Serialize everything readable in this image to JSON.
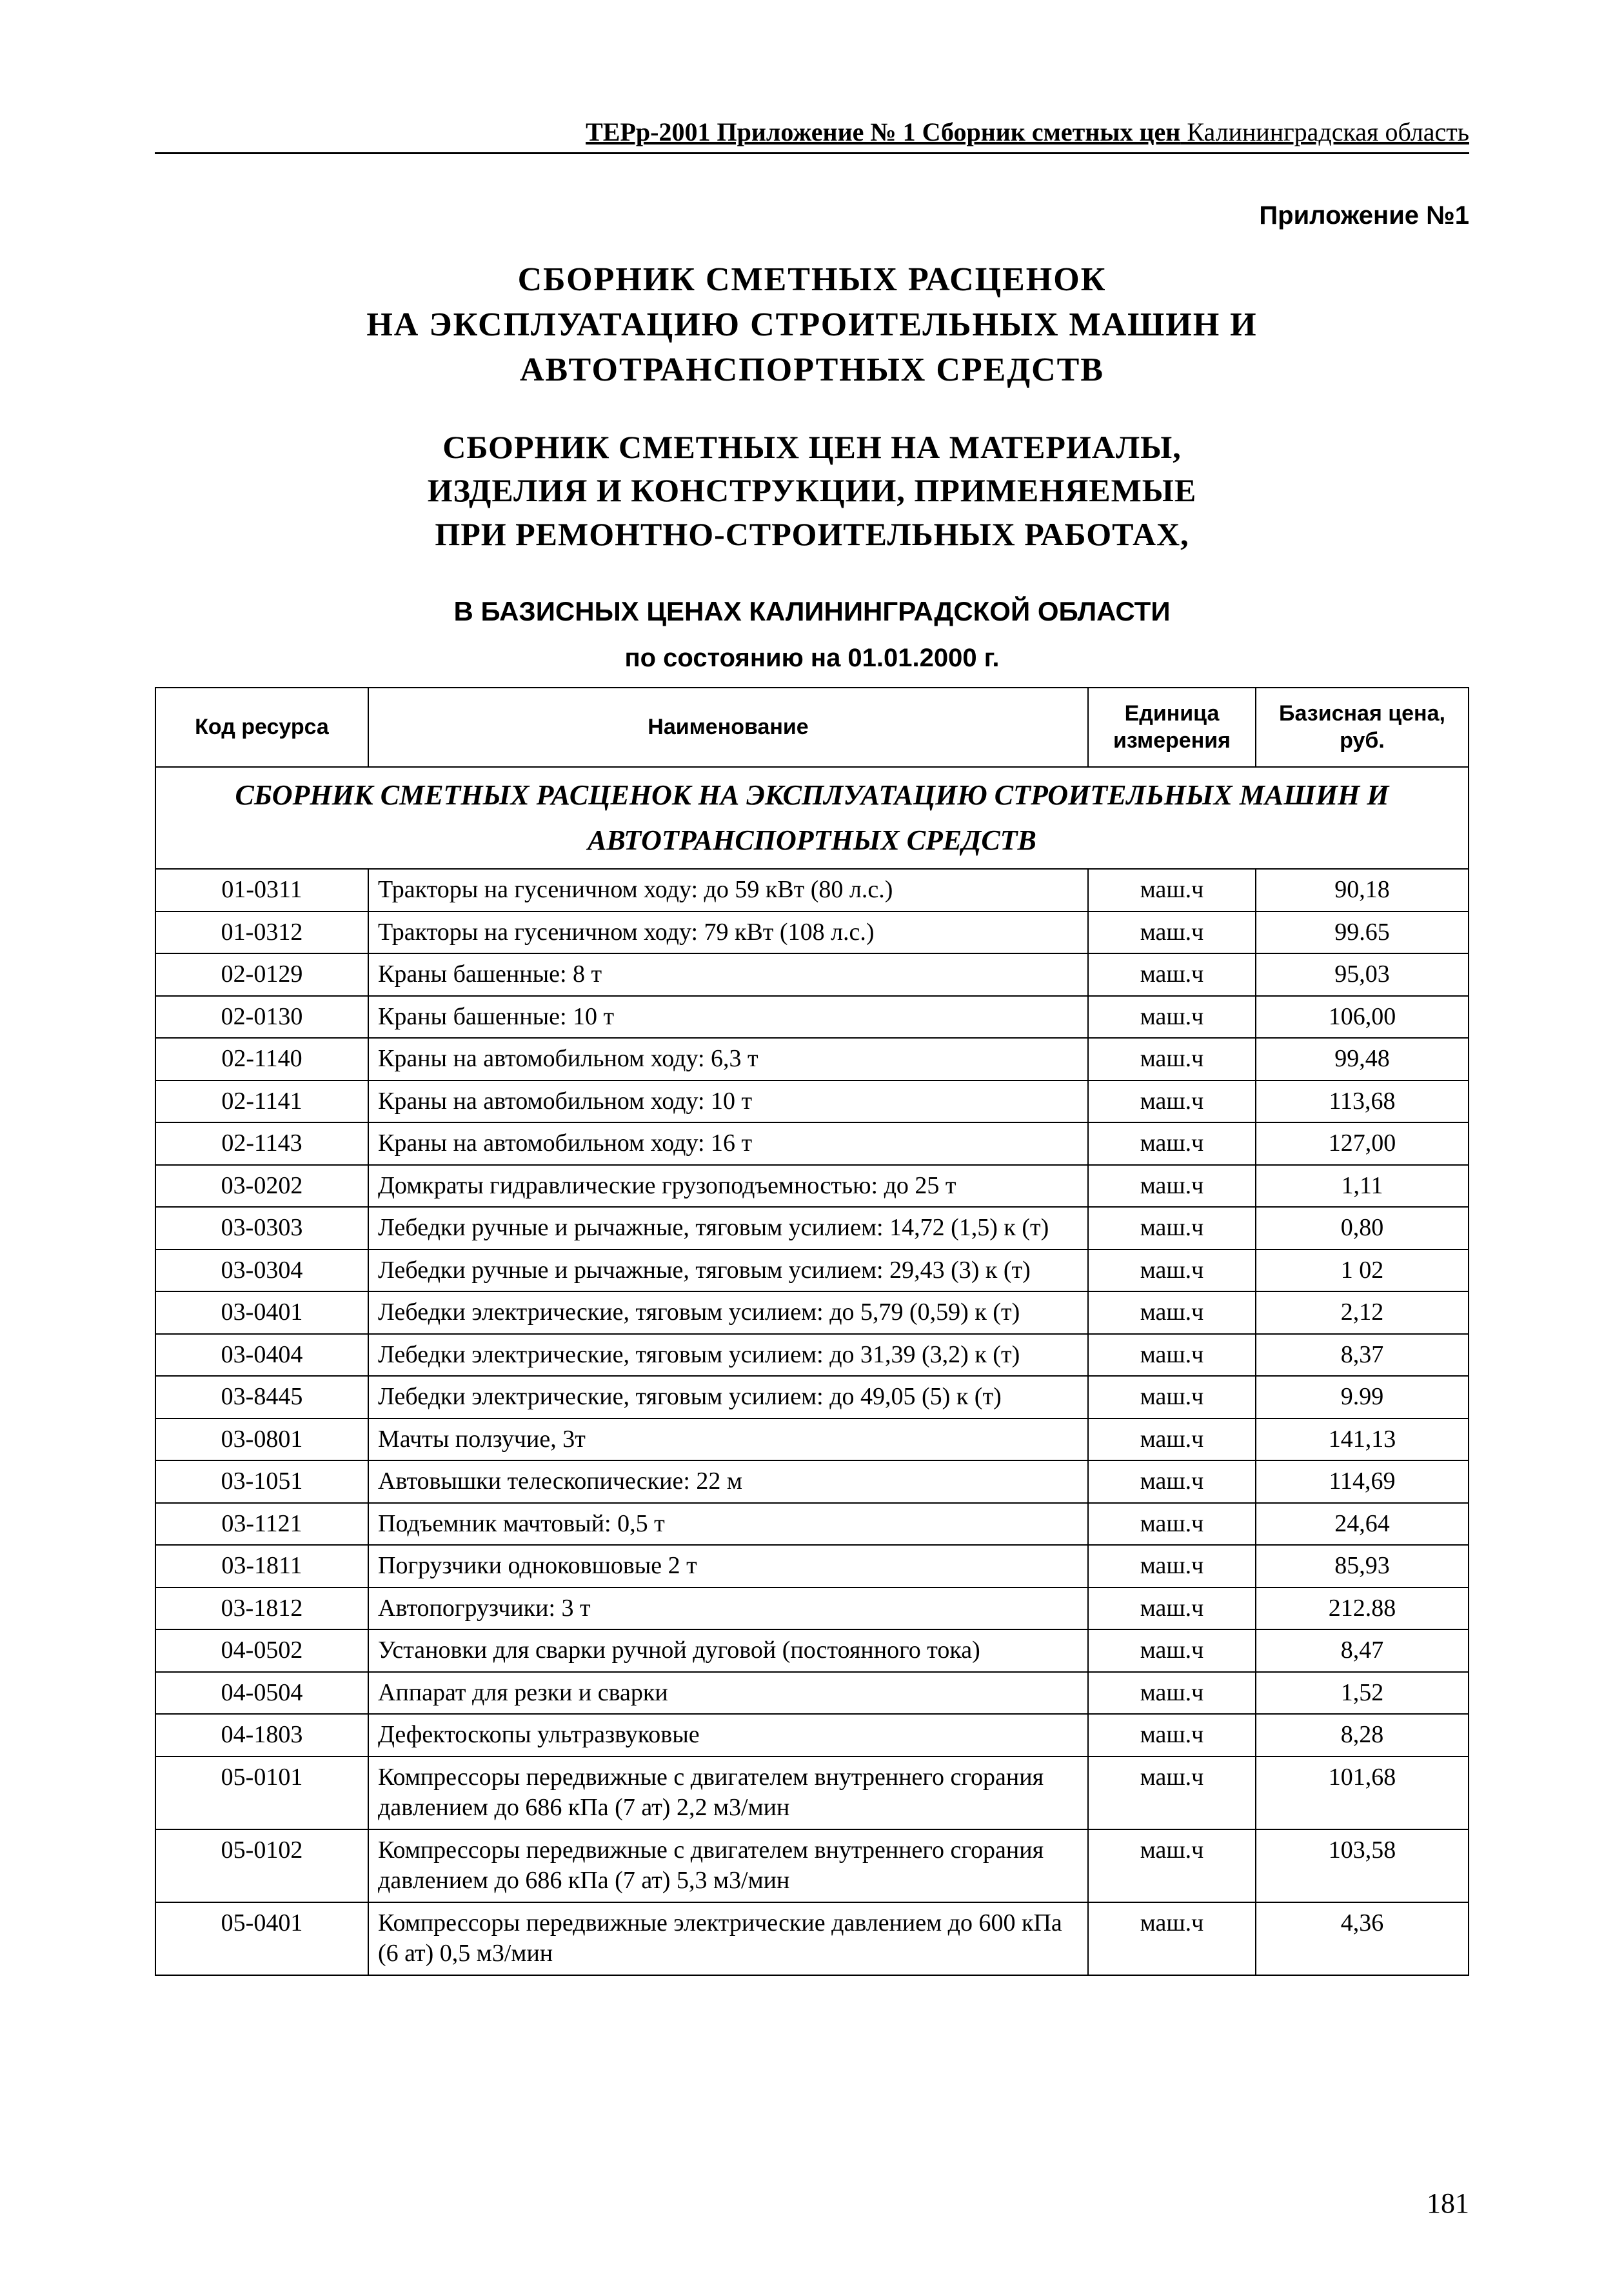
{
  "header": {
    "bold_part": "ТЕРр-2001 Приложение № 1 Сборник сметных цен",
    "plain_part": "  Калининградская область"
  },
  "appendix_label": "Приложение №1",
  "title_lines": [
    "СБОРНИК  СМЕТНЫХ  РАСЦЕНОК",
    "НА  ЭКСПЛУАТАЦИЮ  СТРОИТЕЛЬНЫХ  МАШИН  И",
    "АВТОТРАНСПОРТНЫХ  СРЕДСТВ"
  ],
  "subtitle_lines": [
    "СБОРНИК  СМЕТНЫХ  ЦЕН НА  МАТЕРИАЛЫ,",
    "ИЗДЕЛИЯ  И  КОНСТРУКЦИИ,  ПРИМЕНЯЕМЫЕ",
    "ПРИ  РЕМОНТНО-СТРОИТЕЛЬНЫХ  РАБОТАХ,"
  ],
  "region_line": "В БАЗИСНЫХ ЦЕНАХ КАЛИНИНГРАДСКОЙ ОБЛАСТИ",
  "date_line": "по состоянию на 01.01.2000 г.",
  "table": {
    "columns": {
      "code": "Код ресурса",
      "name": "Наименование",
      "unit": "Единица измерения",
      "price": "Базисная цена, руб."
    },
    "section_title": "СБОРНИК СМЕТНЫХ РАСЦЕНОК НА ЭКСПЛУАТАЦИЮ СТРОИТЕЛЬНЫХ МАШИН И АВТОТРАНСПОРТНЫХ СРЕДСТВ",
    "rows": [
      {
        "code": "01-0311",
        "name": "Тракторы на гусеничном ходу:  до 59 кВт  (80 л.с.)",
        "unit": "маш.ч",
        "price": "90,18"
      },
      {
        "code": "01-0312",
        "name": "Тракторы на гусеничном ходу:  79 кВт  (108 л.с.)",
        "unit": "маш.ч",
        "price": "99.65"
      },
      {
        "code": "02-0129",
        "name": "Краны башенные:  8 т",
        "unit": "маш.ч",
        "price": "95,03"
      },
      {
        "code": "02-0130",
        "name": "Краны башенные:  10 т",
        "unit": "маш.ч",
        "price": "106,00"
      },
      {
        "code": "02-1140",
        "name": "Краны на автомобильном ходу:  6,3 т",
        "unit": "маш.ч",
        "price": "99,48"
      },
      {
        "code": "02-1141",
        "name": "Краны на автомобильном ходу:  10 т",
        "unit": "маш.ч",
        "price": "113,68"
      },
      {
        "code": "02-1143",
        "name": "Краны на автомобильном ходу:  16 т",
        "unit": "маш.ч",
        "price": "127,00"
      },
      {
        "code": "03-0202",
        "name": "Домкраты гидравлические грузоподъемностью:  до  25 т",
        "unit": "маш.ч",
        "price": "1,11"
      },
      {
        "code": "03-0303",
        "name": "Лебедки ручные и рычажные, тяговым усилием:  14,72 (1,5) к (т)",
        "unit": "маш.ч",
        "price": "0,80"
      },
      {
        "code": "03-0304",
        "name": "Лебедки ручные и рычажные, тяговым усилием:  29,43 (3) к (т)",
        "unit": "маш.ч",
        "price": "1 02"
      },
      {
        "code": "03-0401",
        "name": "Лебедки электрические, тяговым усилием:  до  5,79 (0,59) к (т)",
        "unit": "маш.ч",
        "price": "2,12"
      },
      {
        "code": "03-0404",
        "name": "Лебедки электрические, тяговым усилием:  до  31,39 (3,2) к (т)",
        "unit": "маш.ч",
        "price": "8,37"
      },
      {
        "code": "03-8445",
        "name": "Лебедки электрические, тяговым усилием:  до  49,05 (5) к (т)",
        "unit": "маш.ч",
        "price": "9.99"
      },
      {
        "code": "03-0801",
        "name": "Мачты ползучие, 3т",
        "unit": "маш.ч",
        "price": "141,13"
      },
      {
        "code": "03-1051",
        "name": "Автовышки телескопические:  22 м",
        "unit": "маш.ч",
        "price": "114,69"
      },
      {
        "code": "03-1121",
        "name": "Подъемник мачтовый:  0,5 т",
        "unit": "маш.ч",
        "price": "24,64"
      },
      {
        "code": "03-1811",
        "name": "Погрузчики  одноковшовые 2 т",
        "unit": "маш.ч",
        "price": "85,93"
      },
      {
        "code": "03-1812",
        "name": "Автопогрузчики:  3 т",
        "unit": "маш.ч",
        "price": "212.88"
      },
      {
        "code": "04-0502",
        "name": "Установки для сварки ручной дуговой (постоянного тока)",
        "unit": "маш.ч",
        "price": "8,47"
      },
      {
        "code": "04-0504",
        "name": "Аппарат для резки и сварки",
        "unit": "маш.ч",
        "price": "1,52"
      },
      {
        "code": "04-1803",
        "name": "Дефектоскопы ультразвуковые",
        "unit": "маш.ч",
        "price": "8,28"
      },
      {
        "code": "05-0101",
        "name": "Компрессоры передвижные с двигателем внутреннего сгорания давлением до 686 кПа  (7 ат)  2,2 м3/мин",
        "unit": "маш.ч",
        "price": "101,68"
      },
      {
        "code": "05-0102",
        "name": "Компрессоры передвижные с двигателем внутреннего сгорания давлением до 686 кПа  (7 ат)  5,3 м3/мин",
        "unit": "маш.ч",
        "price": "103,58"
      },
      {
        "code": "05-0401",
        "name": "Компрессоры передвижные электрические давлением до 600 кПа  (6 ат)  0,5 м3/мин",
        "unit": "маш.ч",
        "price": "4,36"
      }
    ]
  },
  "page_number": "181"
}
